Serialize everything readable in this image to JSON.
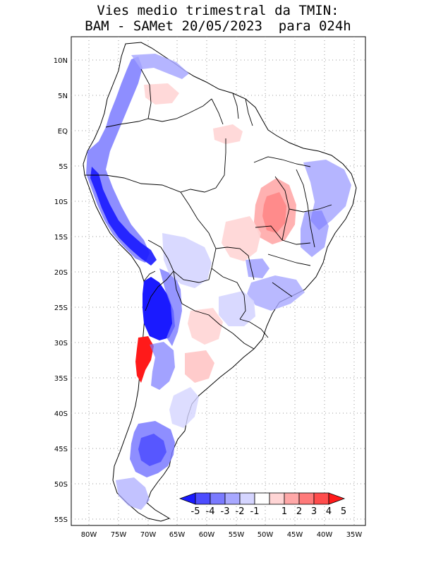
{
  "title": {
    "line1": "Vies medio trimestral da TMIN:",
    "line2": "BAM - SAMet 20/05/2023  para 024h"
  },
  "axes": {
    "lat_labels": [
      "10N",
      "5N",
      "EQ",
      "5S",
      "10S",
      "15S",
      "20S",
      "25S",
      "30S",
      "35S",
      "40S",
      "45S",
      "50S",
      "55S"
    ],
    "lon_labels": [
      "80W",
      "75W",
      "70W",
      "65W",
      "60W",
      "55W",
      "50W",
      "45W",
      "40W",
      "35W"
    ]
  },
  "colorbar": {
    "labels": [
      "-5",
      "-4",
      "-3",
      "-2",
      "-1",
      "1",
      "2",
      "3",
      "4",
      "5"
    ],
    "colors": [
      "#1a1aff",
      "#4d4dff",
      "#7a7aff",
      "#a8a8ff",
      "#d5d5ff",
      "#ffffff",
      "#ffd5d5",
      "#ffa8a8",
      "#ff7a7a",
      "#ff4d4d",
      "#ff1a1a"
    ]
  }
}
